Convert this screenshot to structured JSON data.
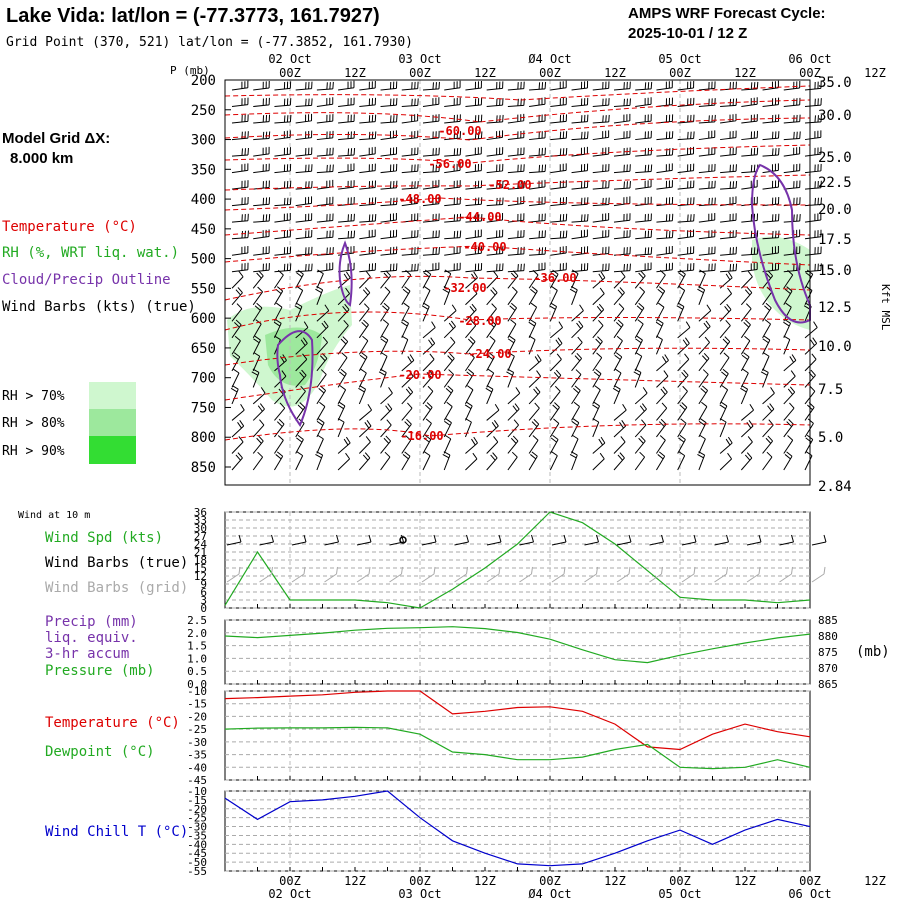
{
  "header": {
    "title": "Lake Vida:  lat/lon = (-77.3773, 161.7927)",
    "grid_point": "Grid Point (370, 521) lat/lon = (-77.3852, 161.7930)",
    "cycle_label": "AMPS WRF Forecast Cycle:",
    "cycle_value": "2025-10-01 / 12  Z"
  },
  "time_axis": {
    "hours": [
      "00Z",
      "12Z",
      "00Z",
      "12Z",
      "00Z",
      "12Z",
      "00Z",
      "12Z",
      "00Z",
      "12Z"
    ],
    "dates": [
      "02 Oct",
      "03 Oct",
      "04 Oct",
      "05 Oct",
      "06 Oct"
    ],
    "top_dates": [
      "02 Oct",
      "03 Oct",
      "Ø4 Oct",
      "05 Oct",
      "06 Oct"
    ],
    "bottom_dates": [
      "02 Oct",
      "03 Oct",
      "Ø4 Oct",
      "05 Oct",
      "06 Oct"
    ]
  },
  "legend": {
    "model_grid": "Model Grid ΔX:",
    "model_grid_value": "8.000 km",
    "temperature": "Temperature (°C)",
    "rh": "RH (%, WRT liq. wat.)",
    "cloud": "Cloud/Precip Outline",
    "wind": "Wind Barbs (kts) (true)",
    "rh70": "RH > 70%",
    "rh80": "RH > 80%",
    "rh90": "RH > 90%",
    "rh_colors": [
      "#cff7cf",
      "#9de89d",
      "#33dd33"
    ]
  },
  "panel_labels": {
    "wind10": "Wind at 10 m",
    "wind_spd": "Wind Spd (kts)",
    "wind_barbs_true": "Wind Barbs (true)",
    "wind_barbs_grid": "Wind Barbs (grid)",
    "precip": "Precip (mm)",
    "liq": "liq. equiv.",
    "accum": "3-hr accum",
    "pressure": "Pressure (mb)",
    "mb_unit": "(mb)",
    "temperature": "Temperature (°C)",
    "dewpoint": "Dewpoint (°C)",
    "windchill": "Wind Chill T (°C)"
  },
  "colors": {
    "temperature": "#dd0000",
    "rh": "#22cc22",
    "cloud": "#7733aa",
    "wind": "#000000",
    "windchill": "#0000cc",
    "grid_barbs": "#aaaaaa"
  },
  "chart_data": [
    {
      "type": "line",
      "name": "cross-section",
      "title": "Temperature / RH / Wind profile",
      "ylabel_left": "P (mb)",
      "ylabel_right": "Kft MSL",
      "pressure_ticks": [
        "200",
        "250",
        "300",
        "350",
        "400",
        "450",
        "500",
        "550",
        "600",
        "650",
        "700",
        "750",
        "800",
        "850"
      ],
      "height_ticks": [
        "35.0",
        "30.0",
        "25.0",
        "22.5",
        "20.0",
        "17.5",
        "15.0",
        "12.5",
        "10.0",
        "7.5",
        "5.0",
        "2.84"
      ],
      "temperature_contour_labels": [
        "-60.00",
        "-56.00",
        "-52.00",
        "-48.00",
        "-44.00",
        "-40.00",
        "-36.00",
        "-32.00",
        "-28.00",
        "-24.00",
        "-20.00",
        "-16.00"
      ]
    },
    {
      "type": "line",
      "name": "wind-speed-10m",
      "yticks": [
        "36",
        "33",
        "30",
        "27",
        "24",
        "21",
        "18",
        "15",
        "12",
        "9",
        "6",
        "3",
        "0"
      ],
      "ylim": [
        0,
        36
      ],
      "x_hours": [
        0,
        6,
        12,
        18,
        24,
        30,
        36,
        42,
        48,
        54,
        60,
        66,
        72,
        78,
        84,
        90,
        96,
        102,
        108
      ],
      "series": [
        {
          "name": "Wind Spd (kts)",
          "values": [
            1,
            21,
            3,
            3,
            3,
            2,
            0,
            7,
            15,
            24,
            36,
            32,
            24,
            14,
            4,
            3,
            3,
            2,
            3
          ]
        }
      ]
    },
    {
      "type": "line",
      "name": "precip-pressure",
      "yticks_left": [
        "2.5",
        "2.0",
        "1.5",
        "1.0",
        "0.5",
        "0.0"
      ],
      "yticks_right": [
        "885",
        "880",
        "875",
        "870",
        "865"
      ],
      "ylim_left": [
        0,
        2.5
      ],
      "ylim_right": [
        865,
        885
      ],
      "x_hours": [
        0,
        6,
        12,
        18,
        24,
        30,
        36,
        42,
        48,
        54,
        60,
        66,
        72,
        78,
        84,
        90,
        96,
        102,
        108
      ],
      "series": [
        {
          "name": "Pressure (mb)",
          "values": [
            880,
            879.5,
            880.2,
            880.9,
            881.8,
            882.4,
            882.6,
            882.9,
            882.3,
            881.1,
            879,
            875.7,
            872.6,
            871.7,
            874,
            876,
            877.8,
            879.4,
            880.6
          ]
        }
      ]
    },
    {
      "type": "line",
      "name": "temperature-dewpoint",
      "yticks": [
        "-10",
        "-15",
        "-20",
        "-25",
        "-30",
        "-35",
        "-40",
        "-45"
      ],
      "ylim": [
        -45,
        -10
      ],
      "x_hours": [
        0,
        6,
        12,
        18,
        24,
        30,
        36,
        42,
        48,
        54,
        60,
        66,
        72,
        78,
        84,
        90,
        96,
        102,
        108
      ],
      "series": [
        {
          "name": "Temperature (°C)",
          "values": [
            -13,
            -12.6,
            -12,
            -11.5,
            -10.5,
            -10,
            -10,
            -19,
            -18,
            -16.5,
            -16.2,
            -18,
            -23,
            -32,
            -33,
            -27,
            -23,
            -26,
            -28
          ]
        },
        {
          "name": "Dewpoint (°C)",
          "values": [
            -25,
            -24.6,
            -24.5,
            -24.5,
            -24.3,
            -24.5,
            -27,
            -34,
            -35,
            -37,
            -37,
            -36,
            -33,
            -31,
            -40,
            -40.5,
            -40,
            -37,
            -40
          ]
        }
      ]
    },
    {
      "type": "line",
      "name": "wind-chill",
      "yticks": [
        "-10",
        "-15",
        "-20",
        "-25",
        "-30",
        "-35",
        "-40",
        "-45",
        "-50",
        "-55"
      ],
      "ylim": [
        -55,
        -10
      ],
      "x_hours": [
        0,
        6,
        12,
        18,
        24,
        30,
        36,
        42,
        48,
        54,
        60,
        66,
        72,
        78,
        84,
        90,
        96,
        102,
        108
      ],
      "series": [
        {
          "name": "Wind Chill T (°C)",
          "values": [
            -14,
            -26,
            -16,
            -15,
            -13,
            -10,
            -25,
            -38,
            -45,
            -51,
            -52,
            -51,
            -45,
            -38,
            -32,
            -40,
            -32,
            -26,
            -30
          ]
        }
      ]
    }
  ]
}
